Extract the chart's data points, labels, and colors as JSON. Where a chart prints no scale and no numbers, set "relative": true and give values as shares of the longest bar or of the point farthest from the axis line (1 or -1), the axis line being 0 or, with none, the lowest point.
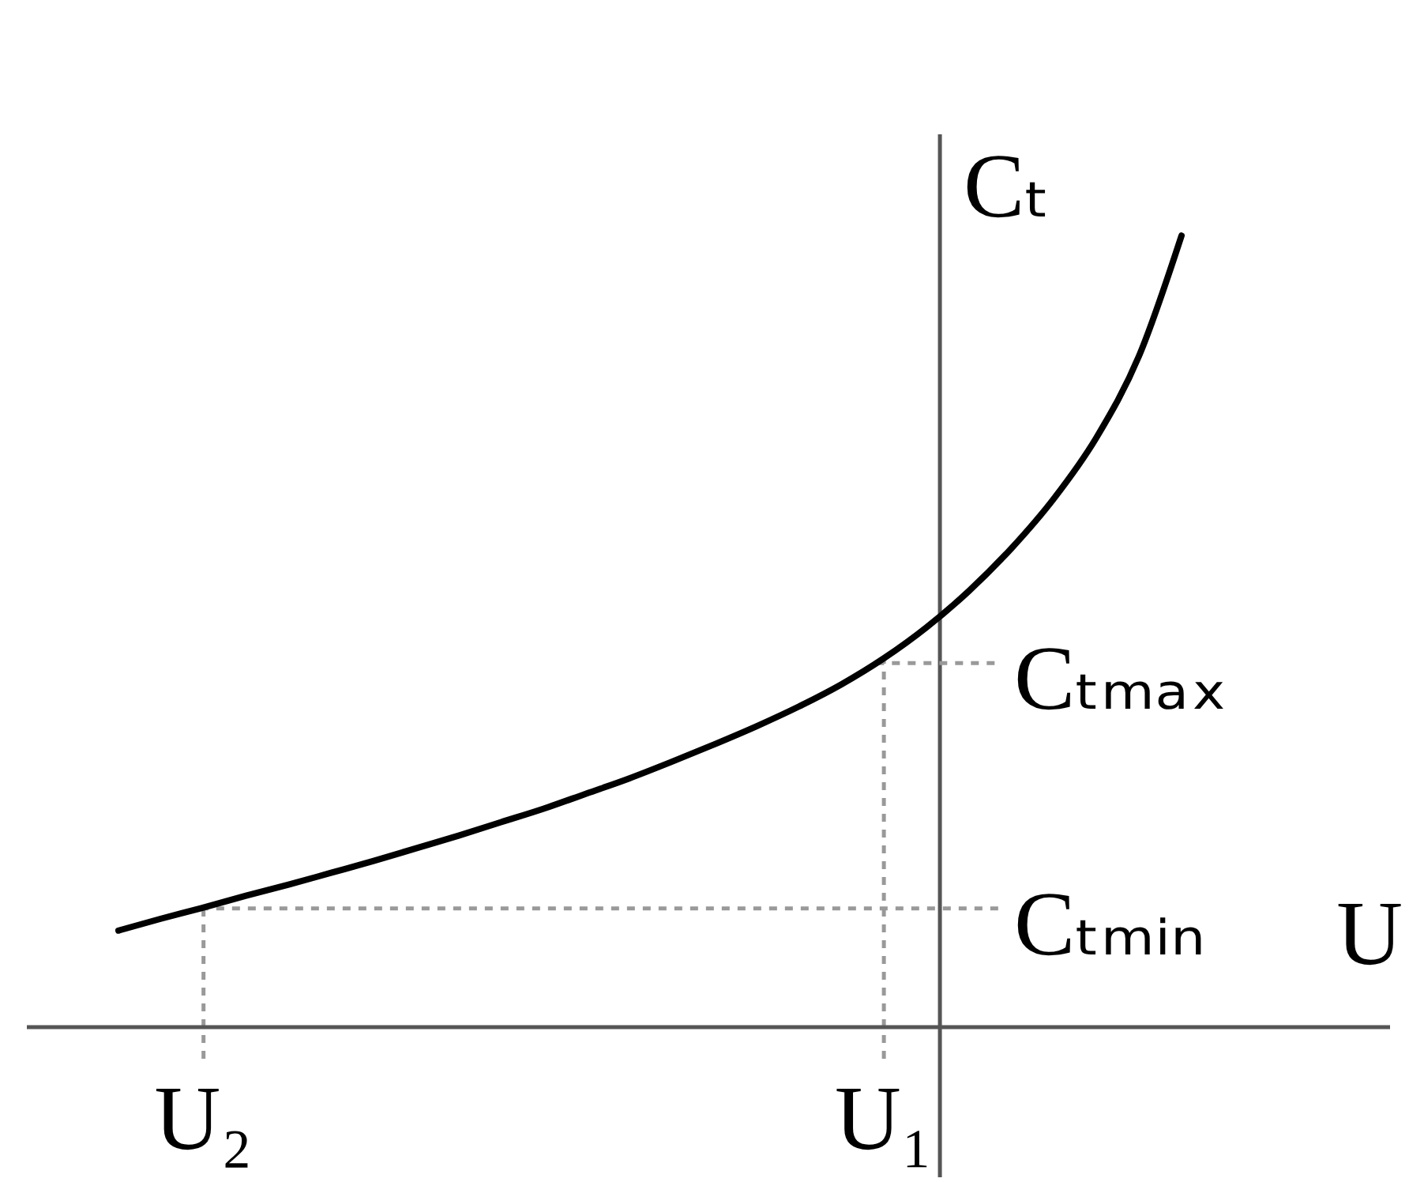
{
  "chart_data": {
    "type": "line",
    "relative": true,
    "xlabel": "U",
    "ylabel": "Cₜ",
    "categories": [
      null,
      null,
      "U₂",
      null,
      null,
      null,
      null,
      null,
      null,
      null,
      null,
      null,
      null,
      null,
      null,
      null,
      null,
      null,
      "U₁",
      null,
      null,
      null,
      null,
      null,
      null,
      null
    ],
    "values": [
      0.122,
      0.137,
      0.151,
      0.166,
      0.18,
      0.195,
      0.21,
      0.226,
      0.242,
      0.259,
      0.276,
      0.295,
      0.314,
      0.335,
      0.357,
      0.38,
      0.405,
      0.433,
      0.466,
      0.505,
      0.551,
      0.605,
      0.668,
      0.745,
      0.848,
      1
    ],
    "color": "#000000",
    "marker": "none",
    "line_style": "solid",
    "ref_lines": [
      {
        "axis": "x",
        "value": "U₂",
        "color": "#999999",
        "line_style": "dotted"
      },
      {
        "axis": "x",
        "value": "U₁",
        "color": "#999999",
        "line_style": "dotted"
      },
      {
        "axis": "y",
        "value": 0.15,
        "label": "Cₜₘᵢₙ",
        "color": "#999999",
        "line_style": "dotted"
      },
      {
        "axis": "y",
        "value": 0.46,
        "label": "Cₜₘₐₓ",
        "color": "#999999",
        "line_style": "dotted"
      }
    ]
  }
}
